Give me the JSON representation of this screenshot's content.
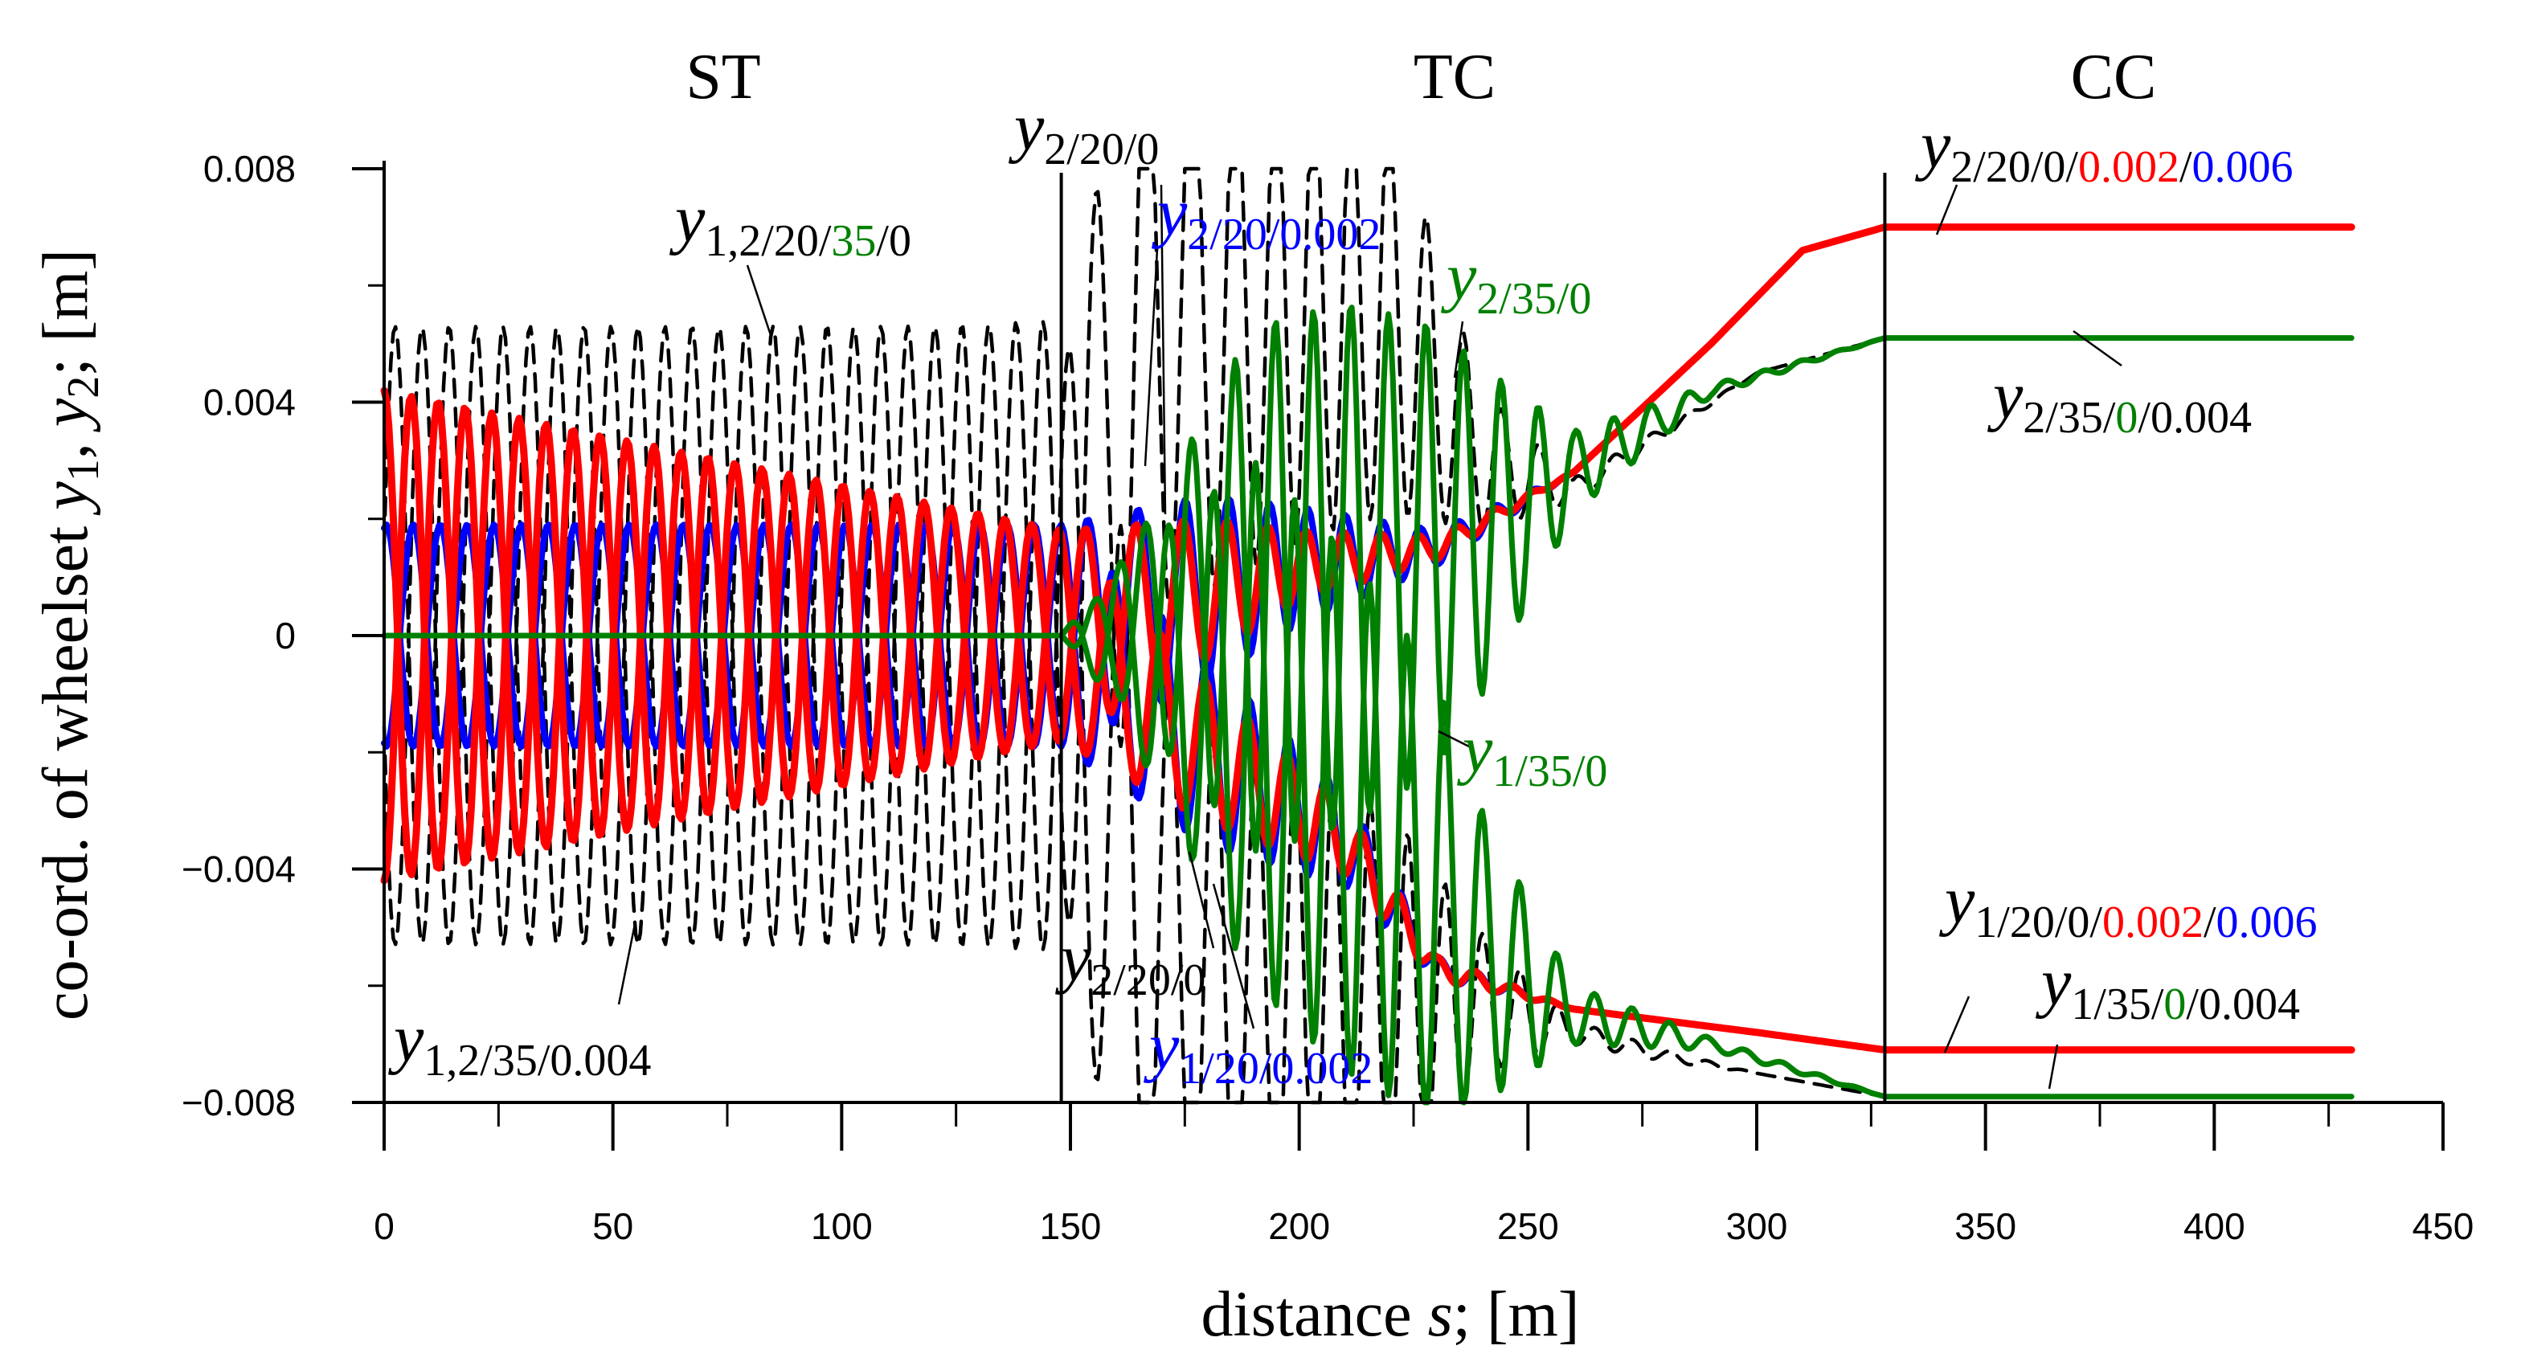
{
  "chart_data": {
    "type": "line",
    "title": "",
    "xlabel": "distance s; [m]",
    "ylabel": "co-ord. of wheelset y1, y2; [m]",
    "xlabel_parts": {
      "pre": "distance ",
      "var": "s",
      "post": "; [m]"
    },
    "ylabel_parts": {
      "pre": "co-ord. of wheelset ",
      "v1": "y",
      "s1": "1",
      "mid": ", ",
      "v2": "y",
      "s2": "2",
      "post": "; [m]"
    },
    "xlim": [
      0,
      450
    ],
    "ylim": [
      -0.008,
      0.008
    ],
    "x_ticks": [
      0,
      50,
      100,
      150,
      200,
      250,
      300,
      350,
      400,
      450
    ],
    "y_ticks": [
      -0.008,
      -0.004,
      0,
      0.004,
      0.008
    ],
    "x_tick_labels": [
      "0",
      "50",
      "100",
      "150",
      "200",
      "250",
      "300",
      "350",
      "400",
      "450"
    ],
    "y_tick_labels": [
      "−0.008",
      "−0.004",
      "0",
      "0.004",
      "0.008"
    ],
    "sections": [
      {
        "label": "ST",
        "x_start": 0,
        "x_end": 148
      },
      {
        "label": "TC",
        "x_start": 148,
        "x_end": 328
      },
      {
        "label": "CC",
        "x_start": 328,
        "x_end": 450
      }
    ],
    "boundaries": [
      148,
      328
    ],
    "colors": {
      "red": "#ff0000",
      "blue": "#0000ff",
      "green": "#008000",
      "black": "#000000"
    },
    "series": [
      {
        "name": "y1,2/35/0.004 (black dashed)",
        "color": "#000000",
        "dash": true,
        "x": [
          0,
          30,
          60,
          90,
          120,
          148,
          160,
          180,
          200,
          220,
          240,
          260,
          280,
          300,
          328,
          430
        ],
        "y2": [
          0.0005,
          0.0053,
          0.0053,
          0.0053,
          0.0053,
          0.0053,
          0.0056,
          0.0056,
          0.0056,
          0.0056,
          0.003,
          0.0025,
          0.0035,
          0.0045,
          0.0051,
          0.0051
        ],
        "y1": [
          -0.0005,
          -0.0053,
          -0.0053,
          -0.0053,
          -0.0053,
          -0.0053,
          -0.0056,
          -0.006,
          -0.0063,
          -0.0065,
          -0.0063,
          -0.0068,
          -0.0072,
          -0.0075,
          -0.0079,
          -0.0079
        ],
        "amplitude": [
          0.0053,
          0.0053,
          0.0053,
          0.0053,
          0.0053,
          0.0054,
          0.0056,
          0.0048,
          0.004,
          0.0035,
          0.0012,
          0.0002,
          0.0001,
          0,
          0,
          0
        ]
      },
      {
        "name": "y2/20/0.002 (blue)",
        "color": "#0000ff",
        "x": [
          0,
          148,
          180,
          200,
          230,
          260,
          290,
          310,
          328,
          430
        ],
        "y": [
          0,
          0,
          0.0008,
          0.0012,
          0.0015,
          0.0028,
          0.005,
          0.0066,
          0.007,
          0.007
        ],
        "amplitude": [
          0.0019,
          0.0019,
          0.0016,
          0.001,
          0.0003,
          0,
          0,
          0,
          0,
          0
        ]
      },
      {
        "name": "y1/20/0.002 (blue)",
        "color": "#0000ff",
        "x": [
          0,
          148,
          180,
          210,
          230,
          260,
          300,
          328,
          430
        ],
        "y": [
          0,
          0,
          -0.002,
          -0.0035,
          -0.0057,
          -0.0064,
          -0.0068,
          -0.0071,
          -0.0071
        ],
        "amplitude": [
          0.0019,
          0.0019,
          0.0016,
          0.0008,
          0.0002,
          0,
          0,
          0,
          0
        ]
      },
      {
        "name": "y2/20/0/0.002/0.006 (red)",
        "color": "#ff0000",
        "x": [
          0,
          148,
          180,
          200,
          230,
          260,
          290,
          310,
          328,
          430
        ],
        "y": [
          0,
          0,
          0.0008,
          0.0012,
          0.0015,
          0.0028,
          0.005,
          0.0066,
          0.007,
          0.007
        ],
        "amplitude": [
          0.0042,
          0.0018,
          0.0012,
          0.0006,
          0.0002,
          0,
          0,
          0,
          0,
          0
        ]
      },
      {
        "name": "y1/20/0/0.002/0.006 (red)",
        "color": "#ff0000",
        "x": [
          0,
          148,
          180,
          210,
          230,
          260,
          300,
          328,
          430
        ],
        "y": [
          0,
          0,
          -0.002,
          -0.0035,
          -0.0057,
          -0.0064,
          -0.0068,
          -0.0071,
          -0.0071
        ],
        "amplitude": [
          0.0042,
          0.0018,
          0.0012,
          0.0006,
          0.0002,
          0,
          0,
          0,
          0
        ]
      },
      {
        "name": "y2/35/0 (green)",
        "color": "#008000",
        "x": [
          0,
          148,
          160,
          190,
          210,
          230,
          240,
          260,
          290,
          328,
          430
        ],
        "y": [
          0,
          0,
          0,
          0.0008,
          0.0012,
          0.0015,
          0.0018,
          0.0028,
          0.0042,
          0.0051,
          0.0051
        ],
        "amplitude": [
          0,
          0,
          0.001,
          0.0045,
          0.0045,
          0.0038,
          0.0028,
          0.0007,
          0.0001,
          0,
          0
        ]
      },
      {
        "name": "y1/35/0 (green)",
        "color": "#008000",
        "x": [
          0,
          148,
          160,
          190,
          210,
          230,
          240,
          260,
          290,
          328,
          430
        ],
        "y": [
          0,
          0,
          0,
          -0.0015,
          -0.003,
          -0.0045,
          -0.0055,
          -0.0065,
          -0.007,
          -0.0079,
          -0.0079
        ],
        "amplitude": [
          0,
          0,
          0.0012,
          0.0045,
          0.0045,
          0.0038,
          0.0025,
          0.0005,
          0.0001,
          0,
          0
        ]
      }
    ],
    "annotations": [
      {
        "id": "a1",
        "parts": [
          {
            "t": "y",
            "c": "#000000"
          },
          {
            "t": "1,2/20/",
            "c": "#000000",
            "sub": true
          },
          {
            "t": "35",
            "c": "#008000",
            "sub": true
          },
          {
            "t": "/0",
            "c": "#000000",
            "sub": true
          }
        ]
      },
      {
        "id": "a2",
        "parts": [
          {
            "t": "y",
            "c": "#000000"
          },
          {
            "t": "2/20/0",
            "c": "#000000",
            "sub": true
          }
        ]
      },
      {
        "id": "a3",
        "parts": [
          {
            "t": "y",
            "c": "#0000ff"
          },
          {
            "t": "2/20/0.002",
            "c": "#0000ff",
            "sub": true
          }
        ]
      },
      {
        "id": "a4",
        "parts": [
          {
            "t": "y",
            "c": "#008000"
          },
          {
            "t": "2/35/0",
            "c": "#008000",
            "sub": true
          }
        ]
      },
      {
        "id": "a5",
        "parts": [
          {
            "t": "y",
            "c": "#000000"
          },
          {
            "t": "2/20/0/",
            "c": "#000000",
            "sub": true
          },
          {
            "t": "0.002",
            "c": "#ff0000",
            "sub": true
          },
          {
            "t": "/",
            "c": "#000000",
            "sub": true
          },
          {
            "t": "0.006",
            "c": "#0000ff",
            "sub": true
          }
        ]
      },
      {
        "id": "a6",
        "parts": [
          {
            "t": "y",
            "c": "#000000"
          },
          {
            "t": "2/35/",
            "c": "#000000",
            "sub": true
          },
          {
            "t": "0",
            "c": "#008000",
            "sub": true
          },
          {
            "t": "/0.004",
            "c": "#000000",
            "sub": true
          }
        ]
      },
      {
        "id": "a7",
        "parts": [
          {
            "t": "y",
            "c": "#008000"
          },
          {
            "t": "1/35/0",
            "c": "#008000",
            "sub": true
          }
        ]
      },
      {
        "id": "a8",
        "parts": [
          {
            "t": "y",
            "c": "#000000"
          },
          {
            "t": "1,2/35/0.004",
            "c": "#000000",
            "sub": true
          }
        ]
      },
      {
        "id": "a9",
        "parts": [
          {
            "t": "y",
            "c": "#000000"
          },
          {
            "t": "2/20/0",
            "c": "#000000",
            "sub": true
          }
        ]
      },
      {
        "id": "a10",
        "parts": [
          {
            "t": "y",
            "c": "#0000ff"
          },
          {
            "t": "1/20/0.002",
            "c": "#0000ff",
            "sub": true
          }
        ]
      },
      {
        "id": "a11",
        "parts": [
          {
            "t": "y",
            "c": "#000000"
          },
          {
            "t": "1/20/0/",
            "c": "#000000",
            "sub": true
          },
          {
            "t": "0.002",
            "c": "#ff0000",
            "sub": true
          },
          {
            "t": "/",
            "c": "#000000",
            "sub": true
          },
          {
            "t": "0.006",
            "c": "#0000ff",
            "sub": true
          }
        ]
      },
      {
        "id": "a12",
        "parts": [
          {
            "t": "y",
            "c": "#000000"
          },
          {
            "t": "1/35/",
            "c": "#000000",
            "sub": true
          },
          {
            "t": "0",
            "c": "#008000",
            "sub": true
          },
          {
            "t": "/0.004",
            "c": "#000000",
            "sub": true
          }
        ]
      }
    ]
  }
}
